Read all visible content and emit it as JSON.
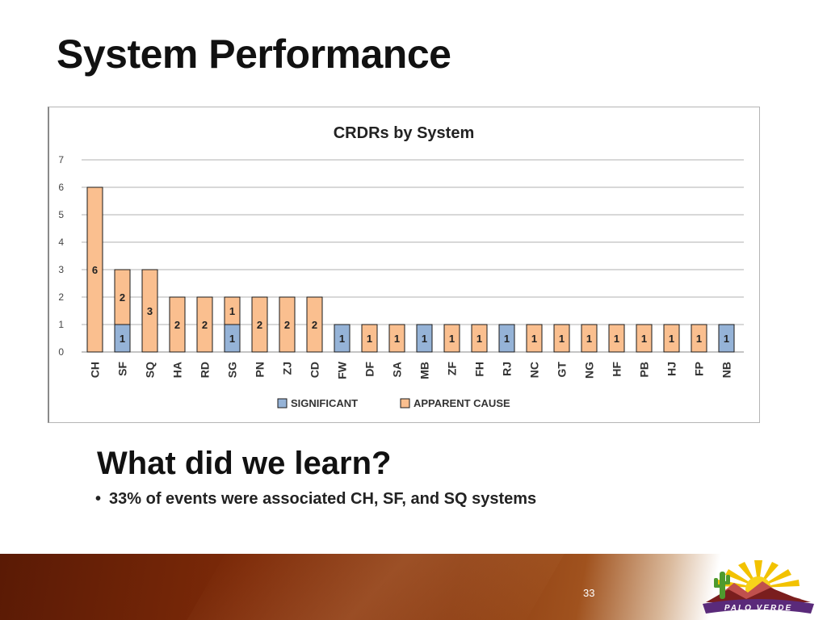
{
  "slide": {
    "title": "System Performance",
    "heading": "What did we learn?",
    "bullet": "33% of events were associated CH, SF, and SQ systems",
    "page_number": "33",
    "logo_text": "PALO VERDE"
  },
  "colors": {
    "significant": "#95b3d7",
    "apparent_cause": "#fabf8f",
    "bar_stroke": "#1a1a1a",
    "grid": "#b0b0b0"
  },
  "chart_data": {
    "type": "bar",
    "stacked": true,
    "title": "CRDRs by System",
    "xlabel": "",
    "ylabel": "",
    "ylim": [
      0,
      7
    ],
    "yticks": [
      0,
      1,
      2,
      3,
      4,
      5,
      6,
      7
    ],
    "grid": true,
    "legend": "bottom",
    "categories": [
      "CH",
      "SF",
      "SQ",
      "HA",
      "RD",
      "SG",
      "PN",
      "ZJ",
      "CD",
      "FW",
      "DF",
      "SA",
      "MB",
      "ZF",
      "FH",
      "RJ",
      "NC",
      "GT",
      "NG",
      "HF",
      "PB",
      "HJ",
      "FP",
      "NB"
    ],
    "series": [
      {
        "name": "SIGNIFICANT",
        "color": "#95b3d7",
        "values": [
          0,
          1,
          0,
          0,
          0,
          1,
          0,
          0,
          0,
          1,
          0,
          0,
          1,
          0,
          0,
          1,
          0,
          0,
          0,
          0,
          0,
          0,
          0,
          1
        ]
      },
      {
        "name": "APPARENT CAUSE",
        "color": "#fabf8f",
        "values": [
          6,
          2,
          3,
          2,
          2,
          1,
          2,
          2,
          2,
          0,
          1,
          1,
          0,
          1,
          1,
          0,
          1,
          1,
          1,
          1,
          1,
          1,
          1,
          0
        ]
      }
    ]
  }
}
